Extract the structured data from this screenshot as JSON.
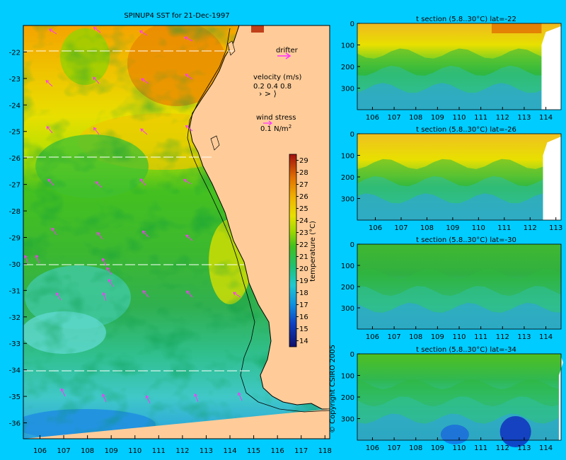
{
  "map": {
    "title": "SPINUP4 SST for 21-Dec-1997",
    "x_ticks": [
      "106",
      "107",
      "108",
      "109",
      "110",
      "111",
      "112",
      "113",
      "114",
      "115",
      "116",
      "117",
      "118"
    ],
    "y_ticks": [
      "-22",
      "-23",
      "-24",
      "-25",
      "-26",
      "-27",
      "-28",
      "-29",
      "-30",
      "-31",
      "-32",
      "-33",
      "-34",
      "-35",
      "-36"
    ],
    "xlim": [
      105.3,
      118.2
    ],
    "ylim": [
      -36.6,
      -21.0
    ],
    "section_lats": [
      -22,
      -26,
      -30,
      -34
    ],
    "legend": {
      "drifter": "drifter",
      "velocity_title": "velocity (m/s)",
      "velocity_values": "0.2 0.4 0.8",
      "wind_title": "wind stress",
      "wind_value": "0.1 N/m",
      "wind_sup": "2",
      "arrow_color": "#ff33ff"
    },
    "colorbar": {
      "ticks": [
        "14",
        "15",
        "16",
        "17",
        "18",
        "19",
        "20",
        "21",
        "22",
        "23",
        "24",
        "25",
        "26",
        "27",
        "28",
        "29"
      ],
      "label": "temperature (°C)",
      "range": [
        14,
        29.5
      ]
    },
    "land_color": "#ffcc99",
    "copyright": "© Copyright CSIRO 2005"
  },
  "chart_data": [
    {
      "type": "heatmap",
      "title": "SPINUP4 SST for 21-Dec-1997",
      "xlabel": "",
      "ylabel": "",
      "xlim": [
        105.3,
        118.2
      ],
      "ylim": [
        -36.6,
        -21.0
      ],
      "colorbar_label": "temperature (°C)",
      "colorbar_range": [
        14,
        29.5
      ]
    },
    {
      "type": "heatmap",
      "title": "t section (5.8..30°C) lat=-22",
      "x_ticks": [
        "106",
        "107",
        "108",
        "109",
        "110",
        "111",
        "112",
        "113",
        "114"
      ],
      "y_ticks": [
        "0",
        "100",
        "200",
        "300"
      ],
      "xlim": [
        105.3,
        114.7
      ],
      "ylim": [
        0,
        400
      ],
      "coast_lon": 113.8
    },
    {
      "type": "heatmap",
      "title": "t section (5.8..30°C) lat=-26",
      "x_ticks": [
        "106",
        "107",
        "108",
        "109",
        "110",
        "111",
        "112",
        "113"
      ],
      "y_ticks": [
        "0",
        "100",
        "200",
        "300"
      ],
      "xlim": [
        105.3,
        113.2
      ],
      "ylim": [
        0,
        400
      ],
      "coast_lon": 112.5
    },
    {
      "type": "heatmap",
      "title": "t section (5.8..30°C) lat=-30",
      "x_ticks": [
        "106",
        "107",
        "108",
        "109",
        "110",
        "111",
        "112",
        "113",
        "114"
      ],
      "y_ticks": [
        "0",
        "100",
        "200",
        "300"
      ],
      "xlim": [
        105.3,
        114.7
      ],
      "ylim": [
        0,
        400
      ],
      "coast_lon": 114.7
    },
    {
      "type": "heatmap",
      "title": "t section (5.8..30°C) lat=-34",
      "x_ticks": [
        "106",
        "107",
        "108",
        "109",
        "110",
        "111",
        "112",
        "113",
        "114"
      ],
      "y_ticks": [
        "0",
        "100",
        "200",
        "300"
      ],
      "xlim": [
        105.3,
        114.7
      ],
      "ylim": [
        0,
        400
      ],
      "coast_lon": 114.6
    }
  ]
}
